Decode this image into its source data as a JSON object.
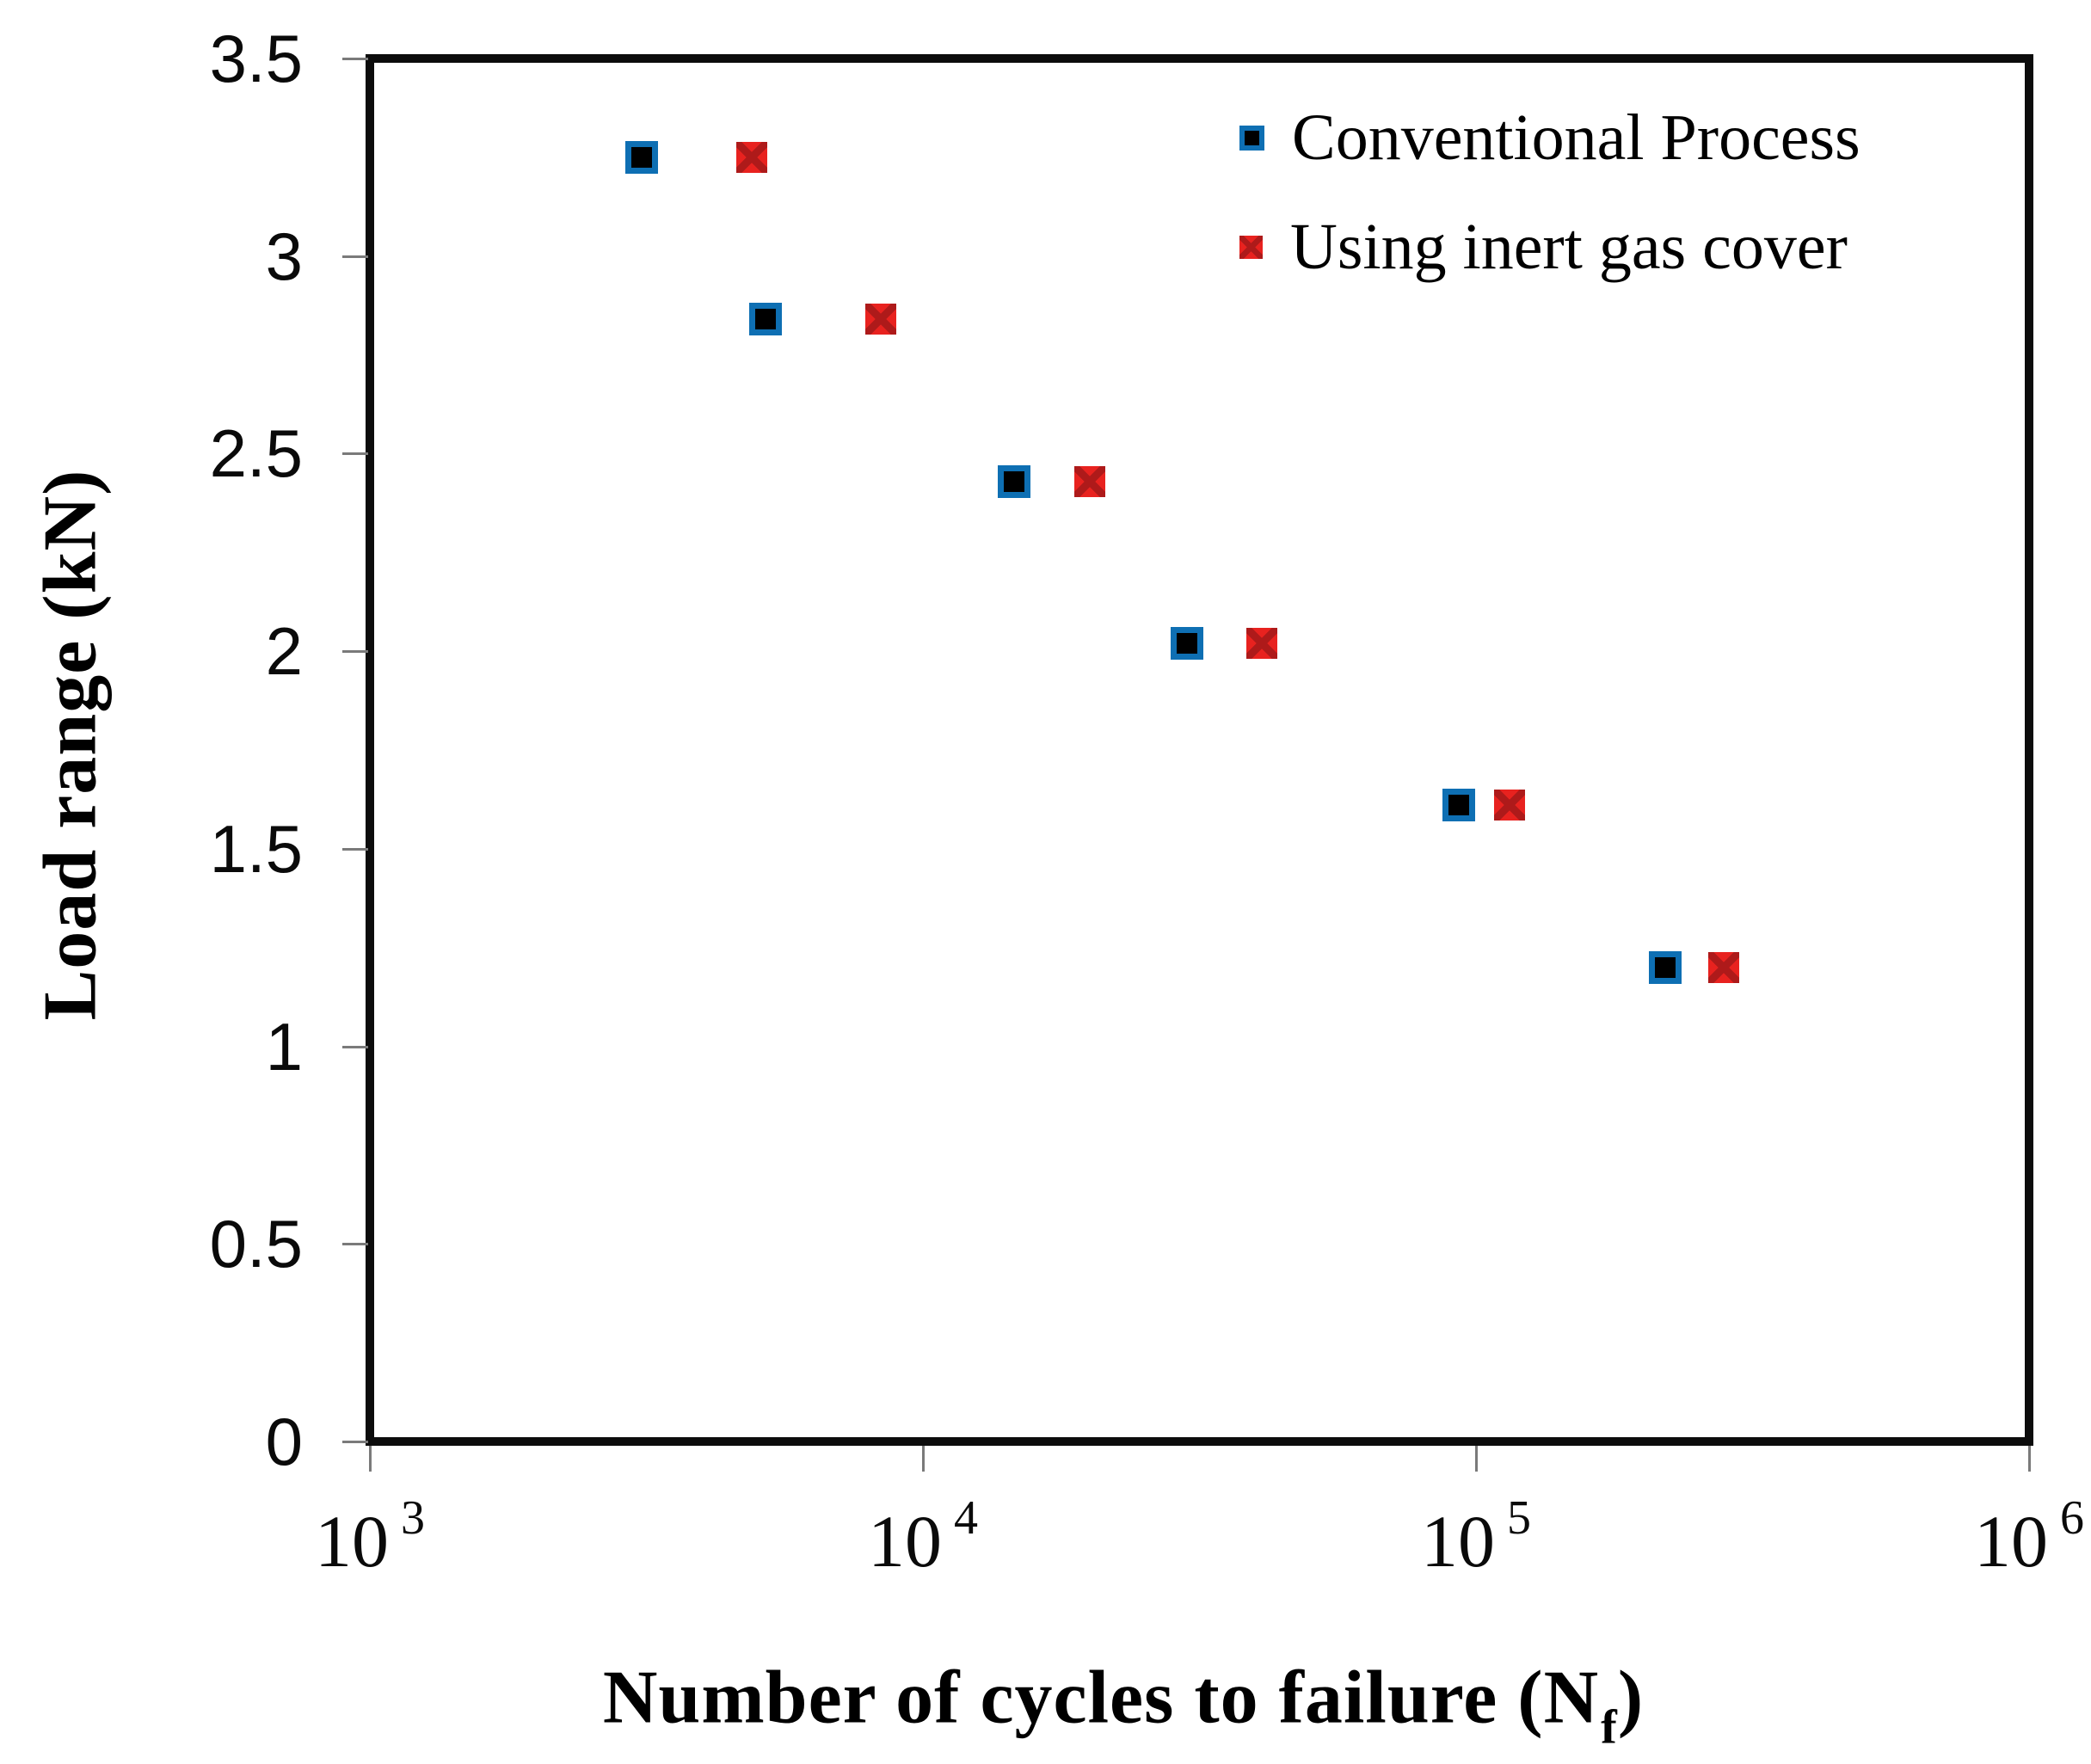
{
  "axes": {
    "y_title": "Load range (kN)",
    "x_title_main": "Number of cycles to failure (N",
    "x_title_sub": "f",
    "x_title_end": ")"
  },
  "colors": {
    "conventional_border": "#0e6fb3",
    "conventional_fill": "#000000",
    "inert_fill": "#e8221f",
    "inert_cross": "#ae1a1a",
    "axis_frame": "#0c0c0c",
    "tick": "#7a7a7a",
    "text": "#000000"
  },
  "chart_data": {
    "type": "scatter",
    "title": "",
    "xlabel": "Number of cycles to failure (Nf)",
    "ylabel": "Load range (kN)",
    "x_scale": "log",
    "y_scale": "linear",
    "xlim": [
      1000,
      1000000
    ],
    "ylim": [
      0,
      3.5
    ],
    "grid": false,
    "legend_position": "top-right",
    "x_ticks": [
      {
        "mantissa": "10",
        "exponent": "3",
        "value": 1000
      },
      {
        "mantissa": "10",
        "exponent": "4",
        "value": 10000
      },
      {
        "mantissa": "10",
        "exponent": "5",
        "value": 100000
      },
      {
        "mantissa": "10",
        "exponent": "6",
        "value": 1000000
      }
    ],
    "y_ticks": [
      {
        "label": "3.5",
        "value": 3.5
      },
      {
        "label": "3",
        "value": 3
      },
      {
        "label": "2.5",
        "value": 2.5
      },
      {
        "label": "2",
        "value": 2
      },
      {
        "label": "1.5",
        "value": 1.5
      },
      {
        "label": "1",
        "value": 1
      },
      {
        "label": "0.5",
        "value": 0.5
      },
      {
        "label": "0",
        "value": 0
      }
    ],
    "series": [
      {
        "name": "Conventional Process",
        "marker": "blue-bordered-black-square",
        "points": [
          {
            "cycles": 3100,
            "load": 3.25
          },
          {
            "cycles": 5200,
            "load": 2.84
          },
          {
            "cycles": 14600,
            "load": 2.43
          },
          {
            "cycles": 30000,
            "load": 2.02
          },
          {
            "cycles": 93000,
            "load": 1.61
          },
          {
            "cycles": 220000,
            "load": 1.2
          }
        ]
      },
      {
        "name": "Using inert gas cover",
        "marker": "red-square-with-x",
        "points": [
          {
            "cycles": 4900,
            "load": 3.25
          },
          {
            "cycles": 8400,
            "load": 2.84
          },
          {
            "cycles": 20000,
            "load": 2.43
          },
          {
            "cycles": 41000,
            "load": 2.02
          },
          {
            "cycles": 115000,
            "load": 1.61
          },
          {
            "cycles": 280000,
            "load": 1.2
          }
        ]
      }
    ]
  }
}
